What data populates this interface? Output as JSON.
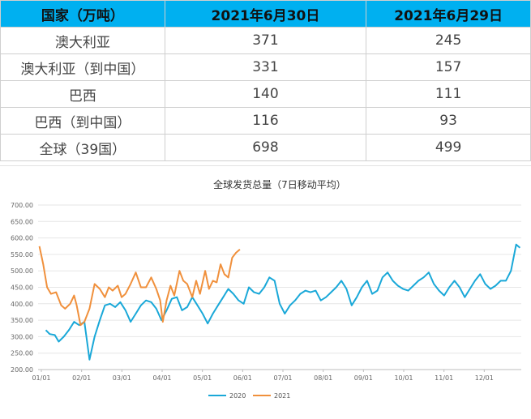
{
  "table": {
    "headers": [
      "国家（万吨）",
      "2021年6月30日",
      "2021年6月29日"
    ],
    "rows": [
      [
        "澳大利亚",
        "371",
        "245"
      ],
      [
        "澳大利亚（到中国）",
        "331",
        "157"
      ],
      [
        "巴西",
        "140",
        "111"
      ],
      [
        "巴西（到中国）",
        "116",
        "93"
      ],
      [
        "全球（39国）",
        "698",
        "499"
      ]
    ]
  },
  "chart_data": {
    "type": "line",
    "title": "全球发货总量（7日移动平均）",
    "xlabel": "",
    "ylabel": "",
    "ylim": [
      200,
      700
    ],
    "y_ticks": [
      "200.00",
      "250.00",
      "300.00",
      "350.00",
      "400.00",
      "450.00",
      "500.00",
      "550.00",
      "600.00",
      "650.00",
      "700.00"
    ],
    "x_ticks": [
      "01/01",
      "02/01",
      "03/01",
      "04/01",
      "05/01",
      "06/01",
      "07/01",
      "08/01",
      "09/01",
      "10/01",
      "11/01",
      "12/01"
    ],
    "grid": true,
    "legend_position": "bottom",
    "series": [
      {
        "name": "2020",
        "color": "#1aa8d8",
        "points": [
          [
            6,
            320
          ],
          [
            9,
            308
          ],
          [
            13,
            305
          ],
          [
            16,
            285
          ],
          [
            20,
            300
          ],
          [
            24,
            320
          ],
          [
            28,
            345
          ],
          [
            32,
            335
          ],
          [
            36,
            345
          ],
          [
            40,
            230
          ],
          [
            44,
            300
          ],
          [
            48,
            350
          ],
          [
            52,
            395
          ],
          [
            56,
            400
          ],
          [
            60,
            390
          ],
          [
            64,
            405
          ],
          [
            68,
            380
          ],
          [
            72,
            345
          ],
          [
            76,
            370
          ],
          [
            80,
            395
          ],
          [
            84,
            410
          ],
          [
            88,
            405
          ],
          [
            92,
            385
          ],
          [
            96,
            350
          ],
          [
            100,
            380
          ],
          [
            104,
            415
          ],
          [
            108,
            420
          ],
          [
            112,
            380
          ],
          [
            116,
            390
          ],
          [
            120,
            420
          ],
          [
            124,
            395
          ],
          [
            128,
            370
          ],
          [
            132,
            340
          ],
          [
            136,
            370
          ],
          [
            140,
            395
          ],
          [
            144,
            420
          ],
          [
            148,
            445
          ],
          [
            152,
            430
          ],
          [
            156,
            410
          ],
          [
            160,
            400
          ],
          [
            164,
            450
          ],
          [
            168,
            435
          ],
          [
            172,
            430
          ],
          [
            176,
            450
          ],
          [
            180,
            480
          ],
          [
            184,
            470
          ],
          [
            188,
            400
          ],
          [
            192,
            370
          ],
          [
            196,
            395
          ],
          [
            200,
            410
          ],
          [
            204,
            430
          ],
          [
            208,
            440
          ],
          [
            212,
            435
          ],
          [
            216,
            440
          ],
          [
            220,
            410
          ],
          [
            224,
            420
          ],
          [
            228,
            435
          ],
          [
            232,
            450
          ],
          [
            236,
            470
          ],
          [
            240,
            445
          ],
          [
            244,
            395
          ],
          [
            248,
            420
          ],
          [
            252,
            450
          ],
          [
            256,
            470
          ],
          [
            260,
            430
          ],
          [
            264,
            440
          ],
          [
            268,
            480
          ],
          [
            272,
            495
          ],
          [
            276,
            470
          ],
          [
            280,
            455
          ],
          [
            284,
            445
          ],
          [
            288,
            440
          ],
          [
            292,
            455
          ],
          [
            296,
            470
          ],
          [
            300,
            480
          ],
          [
            304,
            495
          ],
          [
            308,
            460
          ],
          [
            312,
            440
          ],
          [
            316,
            425
          ],
          [
            320,
            450
          ],
          [
            324,
            470
          ],
          [
            328,
            450
          ],
          [
            332,
            420
          ],
          [
            336,
            445
          ],
          [
            340,
            470
          ],
          [
            344,
            490
          ],
          [
            348,
            460
          ],
          [
            352,
            445
          ],
          [
            356,
            455
          ],
          [
            360,
            470
          ],
          [
            364,
            470
          ],
          [
            368,
            500
          ],
          [
            372,
            580
          ],
          [
            375,
            570
          ]
        ]
      },
      {
        "name": "2021",
        "color": "#f0903c",
        "points": [
          [
            1,
            575
          ],
          [
            4,
            520
          ],
          [
            7,
            450
          ],
          [
            10,
            430
          ],
          [
            14,
            435
          ],
          [
            18,
            395
          ],
          [
            21,
            385
          ],
          [
            25,
            400
          ],
          [
            28,
            425
          ],
          [
            30,
            395
          ],
          [
            33,
            335
          ],
          [
            36,
            345
          ],
          [
            40,
            385
          ],
          [
            44,
            460
          ],
          [
            48,
            445
          ],
          [
            52,
            420
          ],
          [
            55,
            450
          ],
          [
            58,
            440
          ],
          [
            62,
            455
          ],
          [
            65,
            420
          ],
          [
            68,
            430
          ],
          [
            72,
            460
          ],
          [
            76,
            495
          ],
          [
            80,
            450
          ],
          [
            84,
            450
          ],
          [
            88,
            480
          ],
          [
            92,
            445
          ],
          [
            95,
            410
          ],
          [
            97,
            345
          ],
          [
            100,
            410
          ],
          [
            103,
            455
          ],
          [
            106,
            425
          ],
          [
            110,
            500
          ],
          [
            113,
            470
          ],
          [
            116,
            460
          ],
          [
            120,
            420
          ],
          [
            123,
            470
          ],
          [
            126,
            430
          ],
          [
            130,
            500
          ],
          [
            133,
            445
          ],
          [
            136,
            470
          ],
          [
            139,
            465
          ],
          [
            142,
            520
          ],
          [
            145,
            490
          ],
          [
            148,
            480
          ],
          [
            151,
            540
          ],
          [
            154,
            555
          ],
          [
            157,
            565
          ]
        ]
      }
    ]
  }
}
